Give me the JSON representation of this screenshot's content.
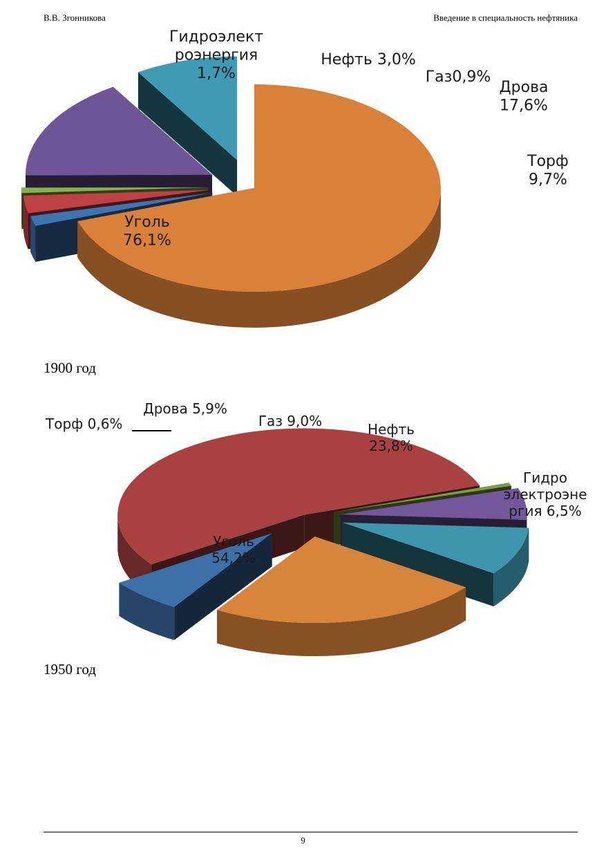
{
  "header": {
    "author": "В.В. Згонникова",
    "title": "Введение в специальность нефтяника"
  },
  "charts": [
    {
      "caption": "1900 год",
      "chart_data": {
        "type": "pie",
        "slices": [
          {
            "label_lines": [
              "Уголь",
              "76,1%"
            ],
            "value": 76.1,
            "color": "#D98138"
          },
          {
            "label_lines": [
              "Гидроэлект",
              "роэнергия",
              "1,7%"
            ],
            "value": 1.7,
            "color": "#3E74B2"
          },
          {
            "label_lines": [
              "Нефть 3,0%"
            ],
            "value": 3.0,
            "color": "#BE4243"
          },
          {
            "label_lines": [
              "Газ0,9%"
            ],
            "value": 0.9,
            "color": "#8AB04C"
          },
          {
            "label_lines": [
              "Дрова",
              "17,6%"
            ],
            "value": 17.6,
            "color": "#6E5597"
          },
          {
            "label_lines": [
              "Торф",
              "9,7%"
            ],
            "value": 9.7,
            "color": "#3F9AB3"
          }
        ]
      }
    },
    {
      "caption": "1950 год",
      "chart_data": {
        "type": "pie",
        "slices": [
          {
            "label_lines": [
              "Уголь",
              "54,2%"
            ],
            "value": 54.2,
            "color": "#A8413F"
          },
          {
            "label_lines": [
              "Торф 0,6%"
            ],
            "value": 0.6,
            "color": "#7DA03E"
          },
          {
            "label_lines": [
              "Дрова 5,9%"
            ],
            "value": 5.9,
            "color": "#72589B"
          },
          {
            "label_lines": [
              "Газ 9,0%"
            ],
            "value": 9.0,
            "color": "#3D96AE"
          },
          {
            "label_lines": [
              "Нефть",
              "23,8%"
            ],
            "value": 23.8,
            "color": "#D8843A"
          },
          {
            "label_lines": [
              "Гидро",
              "электроэне",
              "ргия 6,5%"
            ],
            "value": 6.5,
            "color": "#3F6FA9"
          }
        ]
      }
    }
  ],
  "page_number": "9"
}
